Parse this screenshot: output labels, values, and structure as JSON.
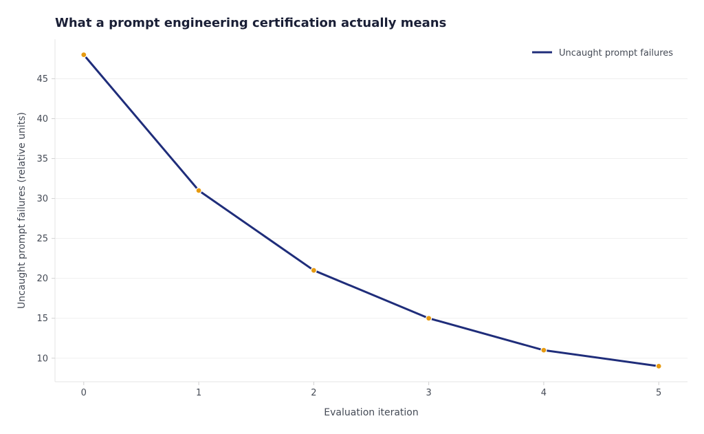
{
  "chart_data": {
    "type": "line",
    "title": "What a prompt engineering certification actually means",
    "xlabel": "Evaluation iteration",
    "ylabel": "Uncaught prompt failures (relative units)",
    "x": [
      0,
      1,
      2,
      3,
      4,
      5
    ],
    "series": [
      {
        "name": "Uncaught prompt failures",
        "values": [
          48,
          31,
          21,
          15,
          11,
          9
        ],
        "color": "#1f2d7a",
        "marker_color": "#e69a10"
      }
    ],
    "xlim": [
      -0.25,
      5.25
    ],
    "ylim": [
      7.05,
      49.95
    ],
    "xticks": [
      0,
      1,
      2,
      3,
      4,
      5
    ],
    "yticks": [
      10,
      15,
      20,
      25,
      30,
      35,
      40,
      45
    ],
    "grid": "horizontal",
    "legend_position": "top-right"
  }
}
